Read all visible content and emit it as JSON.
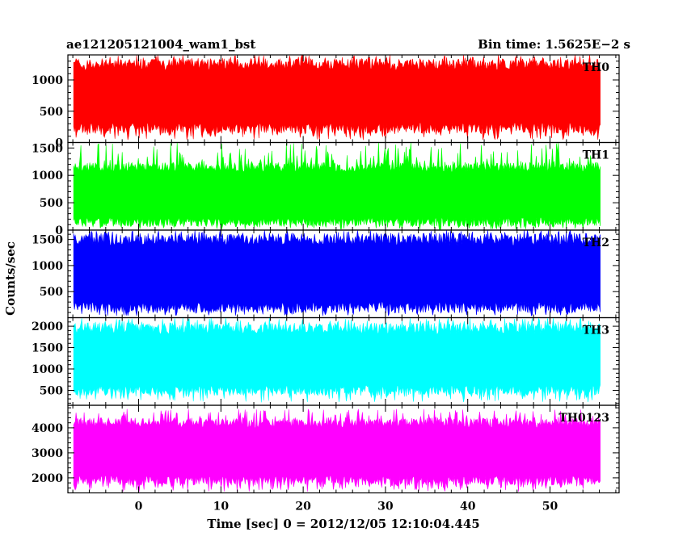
{
  "header": {
    "title": "ae121205121004_wam1_bst",
    "bin_time": "Bin time: 1.5625E−2 s"
  },
  "axes": {
    "ylabel": "Counts/sec",
    "xlabel": "Time [sec] 0 = 2012/12/05 12:10:04.445"
  },
  "chart_data": {
    "type": "line",
    "x_range": [
      -8.6,
      58.4
    ],
    "data_x_range": [
      -7.9,
      56.1
    ],
    "x_ticks_major": [
      0,
      10,
      20,
      30,
      40,
      50
    ],
    "x_tick_labels": [
      "0",
      "10",
      "20",
      "30",
      "40",
      "50"
    ],
    "x_minor_step": 2,
    "panels": [
      {
        "name": "TH0",
        "color": "#ff0000",
        "ylim": [
          0,
          1400
        ],
        "y_ticks": [
          0,
          500,
          1000
        ],
        "y_tick_labels": [
          "0",
          "500",
          "1000"
        ],
        "y_minor_step": 100,
        "band": {
          "mean": 730,
          "low_typ": 230,
          "low_min": 40,
          "high_typ": 1250,
          "high_max": 1400
        }
      },
      {
        "name": "TH1",
        "color": "#00ff00",
        "ylim": [
          0,
          1600
        ],
        "y_ticks": [
          0,
          500,
          1000,
          1500
        ],
        "y_tick_labels": [
          "0",
          "500",
          "1000",
          "1500"
        ],
        "y_minor_step": 100,
        "band": {
          "mean": 650,
          "low_typ": 150,
          "low_min": 10,
          "high_typ": 1150,
          "high_max": 1600
        }
      },
      {
        "name": "TH2",
        "color": "#0000ff",
        "ylim": [
          0,
          1680
        ],
        "y_ticks": [
          500,
          1000,
          1500
        ],
        "y_tick_labels": [
          "500",
          "1000",
          "1500"
        ],
        "y_minor_step": 100,
        "band": {
          "mean": 820,
          "low_typ": 200,
          "low_min": 30,
          "high_typ": 1500,
          "high_max": 1680
        }
      },
      {
        "name": "TH3",
        "color": "#00ffff",
        "ylim": [
          150,
          2200
        ],
        "y_ticks": [
          500,
          1000,
          1500,
          2000
        ],
        "y_tick_labels": [
          "500",
          "1000",
          "1500",
          "2000"
        ],
        "y_minor_step": 100,
        "band": {
          "mean": 1200,
          "low_typ": 500,
          "low_min": 220,
          "high_typ": 1950,
          "high_max": 2200
        }
      },
      {
        "name": "TH0123",
        "color": "#ff00ff",
        "ylim": [
          1400,
          4900
        ],
        "y_ticks": [
          2000,
          3000,
          4000
        ],
        "y_tick_labels": [
          "2000",
          "3000",
          "4000"
        ],
        "y_minor_step": 200,
        "band": {
          "mean": 3000,
          "low_typ": 1900,
          "low_min": 1450,
          "high_typ": 4200,
          "high_max": 4750
        }
      }
    ]
  }
}
